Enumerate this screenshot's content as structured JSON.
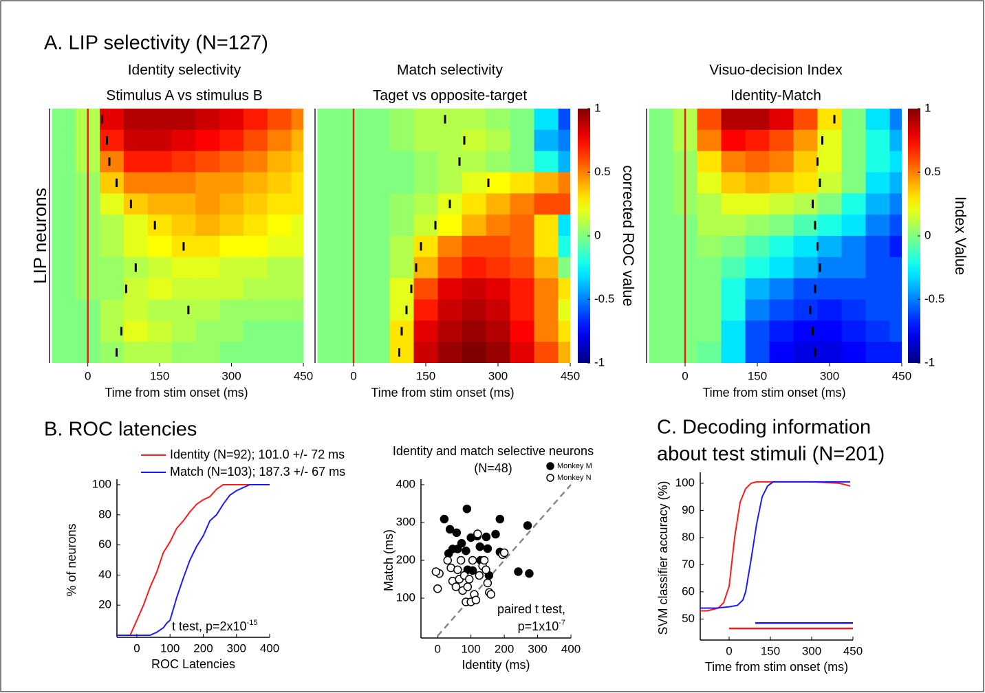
{
  "labels": [
    "A. LIP selectivity (N=127)",
    "B. ROC latencies"
  ],
  "chart_data": [
    {
      "type": "heatmap",
      "title": "Identity selectivity",
      "subtitle": "Stimulus A vs stimulus B",
      "ylabel": "LIP neurons",
      "xlabel": "Time from stim onset (ms)",
      "xlim": [
        -80,
        450
      ],
      "xticks": [
        0,
        150,
        300,
        450
      ],
      "colormap": "jet",
      "clim": [
        -1,
        1
      ],
      "vline": 0,
      "vline_color": "#e0201b",
      "x": [
        -50,
        0,
        50,
        100,
        150,
        200,
        250,
        300,
        350,
        400,
        450
      ],
      "values": [
        [
          0,
          0.1,
          0.8,
          0.9,
          0.9,
          0.9,
          0.85,
          0.8,
          0.7,
          0.6,
          0.5
        ],
        [
          0,
          0.1,
          0.7,
          0.85,
          0.85,
          0.8,
          0.75,
          0.7,
          0.6,
          0.5,
          0.4
        ],
        [
          0,
          0.1,
          0.5,
          0.7,
          0.7,
          0.65,
          0.6,
          0.55,
          0.5,
          0.4,
          0.35
        ],
        [
          0,
          0.05,
          0.35,
          0.5,
          0.5,
          0.5,
          0.45,
          0.45,
          0.4,
          0.35,
          0.3
        ],
        [
          0,
          0.05,
          0.2,
          0.35,
          0.4,
          0.4,
          0.45,
          0.4,
          0.35,
          0.3,
          0.3
        ],
        [
          0,
          0.05,
          0.1,
          0.2,
          0.3,
          0.35,
          0.4,
          0.35,
          0.3,
          0.25,
          0.2
        ],
        [
          0,
          0.05,
          0.1,
          0.2,
          0.25,
          0.3,
          0.3,
          0.25,
          0.25,
          0.2,
          0.2
        ],
        [
          0,
          0.05,
          0.05,
          0.1,
          0.15,
          0.2,
          0.2,
          0.15,
          0.15,
          0.1,
          0.1
        ],
        [
          0,
          0.05,
          0.05,
          0.15,
          0.2,
          0.15,
          0.15,
          0.15,
          0.1,
          0.1,
          0.1
        ],
        [
          0,
          0,
          0.1,
          0.15,
          0.1,
          0.1,
          0.1,
          0.05,
          0.05,
          0.05,
          0.05
        ],
        [
          0,
          0,
          0.1,
          0.2,
          0.15,
          0.1,
          0.05,
          0.05,
          0,
          0,
          0
        ],
        [
          0,
          0,
          0.05,
          0.1,
          0.1,
          0.05,
          0.05,
          0,
          0,
          0,
          0
        ]
      ],
      "latencies": [
        30,
        40,
        45,
        60,
        90,
        140,
        200,
        100,
        80,
        210,
        70,
        60
      ]
    },
    {
      "type": "heatmap",
      "title": "Match selectivity",
      "subtitle": "Taget vs opposite-target",
      "xlabel": "Time from stim onset (ms)",
      "xlim": [
        -80,
        450
      ],
      "xticks": [
        0,
        150,
        300,
        450
      ],
      "colormap": "jet",
      "clim": [
        -1,
        1
      ],
      "vline": 0,
      "vline_color": "#e0201b",
      "colorbar": {
        "label": "corrected ROC value",
        "ticks": [
          1,
          0.5,
          0,
          -0.5,
          -1
        ]
      },
      "x": [
        -50,
        0,
        50,
        100,
        150,
        200,
        250,
        300,
        350,
        400,
        450
      ],
      "values": [
        [
          0,
          0,
          0,
          0.05,
          0.1,
          0.1,
          0.1,
          0.05,
          0,
          -0.3,
          -0.6
        ],
        [
          0,
          0,
          0,
          0.05,
          0.1,
          0.1,
          0.15,
          0.1,
          0,
          -0.4,
          -0.5
        ],
        [
          0,
          0,
          0,
          0,
          0.05,
          0.1,
          0.1,
          0.05,
          0,
          -0.2,
          -0.4
        ],
        [
          0,
          0,
          0,
          0,
          0.05,
          0.1,
          0.2,
          0.25,
          0.3,
          0.4,
          0.5
        ],
        [
          0,
          0,
          0,
          0.05,
          0.1,
          0.2,
          0.3,
          0.4,
          0.5,
          0.6,
          0.6
        ],
        [
          0,
          0,
          0,
          0.05,
          0.15,
          0.25,
          0.4,
          0.5,
          0.55,
          0.3,
          -0.3
        ],
        [
          0,
          0,
          0,
          0.1,
          0.3,
          0.5,
          0.6,
          0.6,
          0.55,
          0.3,
          -0.2
        ],
        [
          0,
          0,
          0,
          0.1,
          0.4,
          0.6,
          0.7,
          0.65,
          0.6,
          0.4,
          0
        ],
        [
          0,
          0,
          0,
          0.2,
          0.6,
          0.8,
          0.85,
          0.8,
          0.7,
          0.5,
          0.3
        ],
        [
          0,
          0,
          0,
          0.2,
          0.7,
          0.85,
          0.9,
          0.85,
          0.7,
          0.5,
          0.2
        ],
        [
          0,
          0,
          0,
          0.3,
          0.8,
          0.9,
          0.95,
          0.9,
          0.75,
          0.5,
          0.3
        ],
        [
          0,
          0,
          0,
          0.3,
          0.85,
          0.95,
          1,
          0.95,
          0.8,
          0.6,
          0.4
        ]
      ],
      "latencies": [
        190,
        230,
        220,
        280,
        200,
        170,
        140,
        130,
        120,
        110,
        100,
        95
      ]
    },
    {
      "type": "heatmap",
      "title": "Visuo-decision Index",
      "subtitle": "Identity-Match",
      "xlabel": "Time from stim onset (ms)",
      "xlim": [
        -80,
        450
      ],
      "xticks": [
        0,
        150,
        300,
        450
      ],
      "colormap": "jet",
      "clim": [
        -1,
        1
      ],
      "vline": 0,
      "vline_color": "#e0201b",
      "colorbar": {
        "label": "Index Value",
        "ticks": [
          1,
          0.5,
          0,
          -0.5,
          -1
        ]
      },
      "x": [
        -50,
        0,
        50,
        100,
        150,
        200,
        250,
        300,
        350,
        400,
        450
      ],
      "values": [
        [
          0,
          0.1,
          0.6,
          0.9,
          0.9,
          0.8,
          0.6,
          0.3,
          0,
          -0.3,
          -0.5
        ],
        [
          0,
          0.1,
          0.5,
          0.75,
          0.7,
          0.6,
          0.45,
          0.2,
          0,
          -0.2,
          -0.4
        ],
        [
          0,
          0.05,
          0.3,
          0.5,
          0.55,
          0.5,
          0.35,
          0.2,
          0,
          -0.2,
          -0.3
        ],
        [
          0,
          0.05,
          0.2,
          0.35,
          0.4,
          0.35,
          0.3,
          0.15,
          0,
          -0.3,
          -0.4
        ],
        [
          0,
          0.05,
          0.1,
          0.2,
          0.2,
          0.15,
          0.1,
          0,
          -0.2,
          -0.4,
          -0.5
        ],
        [
          0,
          0,
          0.1,
          0.1,
          0.05,
          0,
          -0.1,
          -0.2,
          -0.3,
          -0.5,
          -0.6
        ],
        [
          0,
          0,
          0.05,
          0,
          -0.1,
          -0.2,
          -0.3,
          -0.4,
          -0.5,
          -0.6,
          -0.7
        ],
        [
          0,
          0,
          0,
          -0.1,
          -0.2,
          -0.3,
          -0.4,
          -0.5,
          -0.5,
          -0.6,
          -0.6
        ],
        [
          0,
          0,
          0,
          -0.2,
          -0.4,
          -0.5,
          -0.6,
          -0.6,
          -0.6,
          -0.6,
          -0.6
        ],
        [
          0,
          0,
          0,
          -0.2,
          -0.5,
          -0.6,
          -0.65,
          -0.7,
          -0.65,
          -0.6,
          -0.6
        ],
        [
          0,
          0,
          0,
          -0.3,
          -0.6,
          -0.7,
          -0.75,
          -0.75,
          -0.7,
          -0.65,
          -0.6
        ],
        [
          0,
          0,
          -0.05,
          -0.3,
          -0.6,
          -0.75,
          -0.8,
          -0.8,
          -0.75,
          -0.7,
          -0.7
        ]
      ],
      "latencies": [
        310,
        285,
        275,
        280,
        265,
        270,
        275,
        280,
        270,
        260,
        265,
        270
      ]
    },
    {
      "type": "line",
      "xlabel": "ROC Latencies",
      "ylabel": "% of neurons",
      "xlim": [
        -60,
        400
      ],
      "ylim": [
        0,
        100
      ],
      "xticks": [
        0,
        100,
        200,
        300,
        400
      ],
      "yticks": [
        20,
        40,
        60,
        80,
        100
      ],
      "annotation": {
        "text": "t test, p=2x10",
        "superscript": "-15"
      },
      "series": [
        {
          "name": "Identity (N=92); 101.0 +/- 72 ms",
          "color": "#ff1a1a",
          "x": [
            -60,
            -20,
            0,
            20,
            40,
            60,
            80,
            100,
            120,
            140,
            160,
            180,
            200,
            220,
            240,
            260,
            300,
            400
          ],
          "values": [
            0,
            0,
            10,
            20,
            32,
            42,
            55,
            62,
            71,
            76,
            82,
            87,
            90,
            92,
            97,
            100,
            100,
            100
          ]
        },
        {
          "name": "Match (N=103); 187.3 +/- 67 ms",
          "color": "#1a1aff",
          "x": [
            -60,
            40,
            60,
            80,
            90,
            100,
            120,
            140,
            160,
            180,
            200,
            220,
            240,
            260,
            280,
            300,
            340,
            400
          ],
          "values": [
            0,
            0,
            2,
            5,
            8,
            10,
            25,
            38,
            50,
            59,
            66,
            76,
            80,
            87,
            93,
            96,
            100,
            100
          ]
        }
      ]
    },
    {
      "type": "scatter",
      "title": "Identity and match selective neurons",
      "subtitle": "(N=48)",
      "xlabel": "Identity (ms)",
      "ylabel": "Match (ms)",
      "xlim": [
        -50,
        400
      ],
      "ylim": [
        0,
        400
      ],
      "xticks": [
        0,
        100,
        200,
        300,
        400
      ],
      "yticks": [
        100,
        200,
        300,
        400
      ],
      "diagonal": true,
      "legend": "top-right",
      "note": "paired t test,",
      "annotation": {
        "text": "p=1x10",
        "superscript": "-7"
      },
      "series": [
        {
          "name": "Monkey M",
          "color": "#000000",
          "filled": true,
          "x": [
            20,
            37,
            57,
            88,
            33,
            72,
            100,
            119,
            127,
            146,
            150,
            129,
            105,
            154,
            187,
            174,
            187,
            242,
            270,
            275,
            45,
            60,
            85,
            90
          ],
          "values": [
            309,
            282,
            273,
            336,
            218,
            245,
            260,
            264,
            236,
            262,
            231,
            200,
            173,
            160,
            222,
            269,
            309,
            170,
            292,
            165,
            230,
            230,
            225,
            175
          ]
        },
        {
          "name": "Monkey N",
          "color": "#000000",
          "filled": false,
          "x": [
            0,
            5,
            30,
            40,
            45,
            55,
            60,
            65,
            70,
            75,
            80,
            85,
            90,
            95,
            100,
            105,
            110,
            115,
            120,
            125,
            135,
            140,
            145,
            150,
            155,
            160,
            195,
            200,
            -5
          ],
          "values": [
            125,
            165,
            200,
            180,
            145,
            130,
            175,
            150,
            200,
            120,
            160,
            90,
            130,
            150,
            90,
            200,
            110,
            95,
            270,
            160,
            185,
            200,
            175,
            140,
            115,
            110,
            215,
            220,
            170
          ]
        }
      ]
    },
    {
      "type": "line",
      "title": "C. Decoding information",
      "subtitle": "about test stimuli (N=201)",
      "xlabel": "Time from stim onset (ms)",
      "ylabel": "SVM classifier accuracy (%)",
      "xlim": [
        -105,
        450
      ],
      "ylim": [
        43,
        102
      ],
      "xticks": [
        0,
        150,
        300,
        450
      ],
      "yticks": [
        50,
        60,
        70,
        80,
        90,
        100
      ],
      "series": [
        {
          "color": "#ff1a1a",
          "x": [
            -105,
            -80,
            -60,
            -40,
            -20,
            0,
            20,
            40,
            60,
            80,
            100,
            150,
            300,
            400,
            440
          ],
          "values": [
            53,
            53,
            53.5,
            54,
            56,
            62,
            80,
            93,
            98,
            100,
            100.5,
            100.5,
            100.5,
            100,
            99
          ]
        },
        {
          "color": "#1a1aff",
          "x": [
            -105,
            -50,
            0,
            30,
            50,
            60,
            80,
            100,
            120,
            140,
            160,
            200,
            300,
            440
          ],
          "values": [
            54,
            54,
            54.5,
            55,
            57,
            60,
            72,
            85,
            95,
            99,
            100.5,
            100.5,
            100.5,
            100.5
          ]
        }
      ],
      "sig_bars": [
        {
          "color": "#1a1aff",
          "x": [
            95,
            450
          ],
          "y": 48.5
        },
        {
          "color": "#ff1a1a",
          "x": [
            0,
            450
          ],
          "y": 46.5
        }
      ]
    }
  ]
}
